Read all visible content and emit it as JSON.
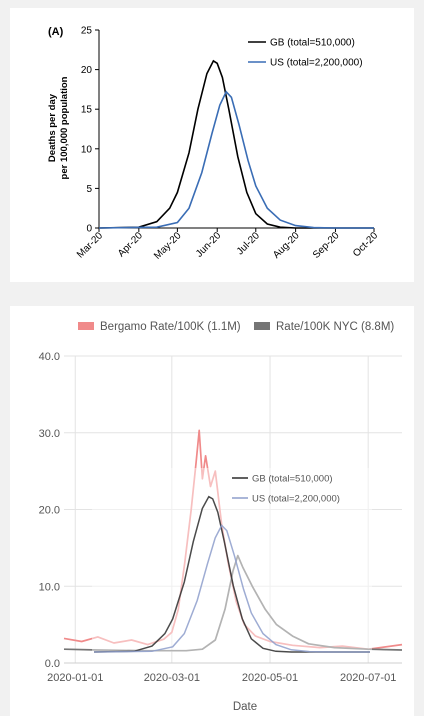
{
  "chart_data": [
    {
      "type": "line",
      "panel_label": "(A)",
      "ylabel_line1": "Deaths per day",
      "ylabel_line2": "per 100,000 population",
      "ylim": [
        0,
        25
      ],
      "y_ticks": [
        "0",
        "5",
        "10",
        "15",
        "20",
        "25"
      ],
      "x_ticks": [
        "Mar-20",
        "Apr-20",
        "May-20",
        "Jun-20",
        "Jul-20",
        "Aug-20",
        "Sep-20",
        "Oct-20"
      ],
      "xlim": [
        "2020-03-01",
        "2020-10-01"
      ],
      "legend_position": "top-right",
      "grid": false,
      "series": [
        {
          "name": "GB (total=510,000)",
          "color": "#000000",
          "points": [
            [
              "2020-03-01",
              0
            ],
            [
              "2020-04-01",
              0.1
            ],
            [
              "2020-04-15",
              0.8
            ],
            [
              "2020-04-25",
              2.5
            ],
            [
              "2020-05-01",
              4.5
            ],
            [
              "2020-05-10",
              9.5
            ],
            [
              "2020-05-17",
              15
            ],
            [
              "2020-05-24",
              19.5
            ],
            [
              "2020-05-29",
              21.1
            ],
            [
              "2020-06-01",
              20.8
            ],
            [
              "2020-06-05",
              19
            ],
            [
              "2020-06-10",
              15
            ],
            [
              "2020-06-17",
              9
            ],
            [
              "2020-06-24",
              4.5
            ],
            [
              "2020-07-01",
              1.8
            ],
            [
              "2020-07-10",
              0.5
            ],
            [
              "2020-07-20",
              0.1
            ],
            [
              "2020-08-01",
              0
            ],
            [
              "2020-10-01",
              0
            ]
          ]
        },
        {
          "name": "US (total=2,200,000)",
          "color": "#3a6db5",
          "points": [
            [
              "2020-03-01",
              0
            ],
            [
              "2020-04-15",
              0.1
            ],
            [
              "2020-05-01",
              0.7
            ],
            [
              "2020-05-10",
              2.5
            ],
            [
              "2020-05-20",
              7
            ],
            [
              "2020-05-28",
              12
            ],
            [
              "2020-06-03",
              15.5
            ],
            [
              "2020-06-08",
              17.2
            ],
            [
              "2020-06-12",
              16.5
            ],
            [
              "2020-06-18",
              13
            ],
            [
              "2020-06-25",
              8.5
            ],
            [
              "2020-07-01",
              5.3
            ],
            [
              "2020-07-10",
              2.5
            ],
            [
              "2020-07-20",
              1
            ],
            [
              "2020-08-01",
              0.3
            ],
            [
              "2020-08-15",
              0.05
            ],
            [
              "2020-09-01",
              0
            ],
            [
              "2020-10-01",
              0
            ]
          ]
        }
      ]
    },
    {
      "type": "line",
      "xlabel": "Date",
      "ylim": [
        0,
        40
      ],
      "y_ticks": [
        "0.0",
        "10.0",
        "20.0",
        "30.0",
        "40.0"
      ],
      "x_ticks": [
        "2020-01-01",
        "2020-03-01",
        "2020-05-01",
        "2020-07-01"
      ],
      "xlim": [
        "2019-12-25",
        "2020-07-22"
      ],
      "legend_position": "top",
      "grid": true,
      "series": [
        {
          "name": "Bergamo Rate/100K (1.1M)",
          "color": "#f08a8a",
          "points": [
            [
              "2019-12-25",
              3.2
            ],
            [
              "2020-01-05",
              2.8
            ],
            [
              "2020-01-15",
              3.4
            ],
            [
              "2020-01-25",
              2.6
            ],
            [
              "2020-02-05",
              3.0
            ],
            [
              "2020-02-15",
              2.4
            ],
            [
              "2020-02-25",
              3.1
            ],
            [
              "2020-03-01",
              4
            ],
            [
              "2020-03-05",
              7
            ],
            [
              "2020-03-09",
              13
            ],
            [
              "2020-03-13",
              20
            ],
            [
              "2020-03-16",
              26
            ],
            [
              "2020-03-18",
              30.3
            ],
            [
              "2020-03-20",
              24
            ],
            [
              "2020-03-22",
              27
            ],
            [
              "2020-03-25",
              23
            ],
            [
              "2020-03-28",
              25
            ],
            [
              "2020-04-01",
              18
            ],
            [
              "2020-04-05",
              13
            ],
            [
              "2020-04-10",
              8
            ],
            [
              "2020-04-15",
              5
            ],
            [
              "2020-04-22",
              3.5
            ],
            [
              "2020-05-01",
              2.8
            ],
            [
              "2020-05-15",
              2.3
            ],
            [
              "2020-06-01",
              2.0
            ],
            [
              "2020-06-15",
              2.2
            ],
            [
              "2020-07-01",
              1.8
            ],
            [
              "2020-07-22",
              2.4
            ]
          ]
        },
        {
          "name": "Rate/100K NYC (8.8M)",
          "color": "#757575",
          "points": [
            [
              "2019-12-25",
              1.8
            ],
            [
              "2020-01-15",
              1.7
            ],
            [
              "2020-02-15",
              1.6
            ],
            [
              "2020-03-10",
              1.6
            ],
            [
              "2020-03-20",
              1.8
            ],
            [
              "2020-03-28",
              3
            ],
            [
              "2020-04-03",
              7
            ],
            [
              "2020-04-08",
              12
            ],
            [
              "2020-04-11",
              14
            ],
            [
              "2020-04-14",
              12.5
            ],
            [
              "2020-04-20",
              10
            ],
            [
              "2020-04-28",
              7
            ],
            [
              "2020-05-05",
              5
            ],
            [
              "2020-05-15",
              3.5
            ],
            [
              "2020-05-25",
              2.5
            ],
            [
              "2020-06-10",
              2
            ],
            [
              "2020-07-01",
              1.8
            ],
            [
              "2020-07-22",
              1.7
            ]
          ]
        }
      ]
    },
    {
      "type": "line",
      "overlay": true,
      "legend_position": "top-right",
      "ylim": [
        0,
        25
      ],
      "xlim": [
        "2020-03-01",
        "2020-10-01"
      ],
      "series": [
        {
          "name": "GB (total=510,000)",
          "color": "#2b2b2b",
          "points": [
            [
              "2020-03-01",
              0
            ],
            [
              "2020-04-01",
              0.1
            ],
            [
              "2020-04-15",
              0.8
            ],
            [
              "2020-04-25",
              2.5
            ],
            [
              "2020-05-01",
              4.5
            ],
            [
              "2020-05-10",
              9.5
            ],
            [
              "2020-05-17",
              15
            ],
            [
              "2020-05-24",
              19.5
            ],
            [
              "2020-05-29",
              21.1
            ],
            [
              "2020-06-01",
              20.8
            ],
            [
              "2020-06-05",
              19
            ],
            [
              "2020-06-10",
              15
            ],
            [
              "2020-06-17",
              9
            ],
            [
              "2020-06-24",
              4.5
            ],
            [
              "2020-07-01",
              1.8
            ],
            [
              "2020-07-10",
              0.5
            ],
            [
              "2020-07-20",
              0.1
            ],
            [
              "2020-08-01",
              0
            ],
            [
              "2020-10-01",
              0
            ]
          ]
        },
        {
          "name": "US (total=2,200,000)",
          "color": "#8d9ecb",
          "points": [
            [
              "2020-03-01",
              0
            ],
            [
              "2020-04-15",
              0.1
            ],
            [
              "2020-05-01",
              0.7
            ],
            [
              "2020-05-10",
              2.5
            ],
            [
              "2020-05-20",
              7
            ],
            [
              "2020-05-28",
              12
            ],
            [
              "2020-06-03",
              15.5
            ],
            [
              "2020-06-08",
              17.2
            ],
            [
              "2020-06-12",
              16.5
            ],
            [
              "2020-06-18",
              13
            ],
            [
              "2020-06-25",
              8.5
            ],
            [
              "2020-07-01",
              5.3
            ],
            [
              "2020-07-10",
              2.5
            ],
            [
              "2020-07-20",
              1
            ],
            [
              "2020-08-01",
              0.3
            ],
            [
              "2020-08-15",
              0.05
            ],
            [
              "2020-09-01",
              0
            ],
            [
              "2020-10-01",
              0
            ]
          ]
        }
      ]
    }
  ]
}
